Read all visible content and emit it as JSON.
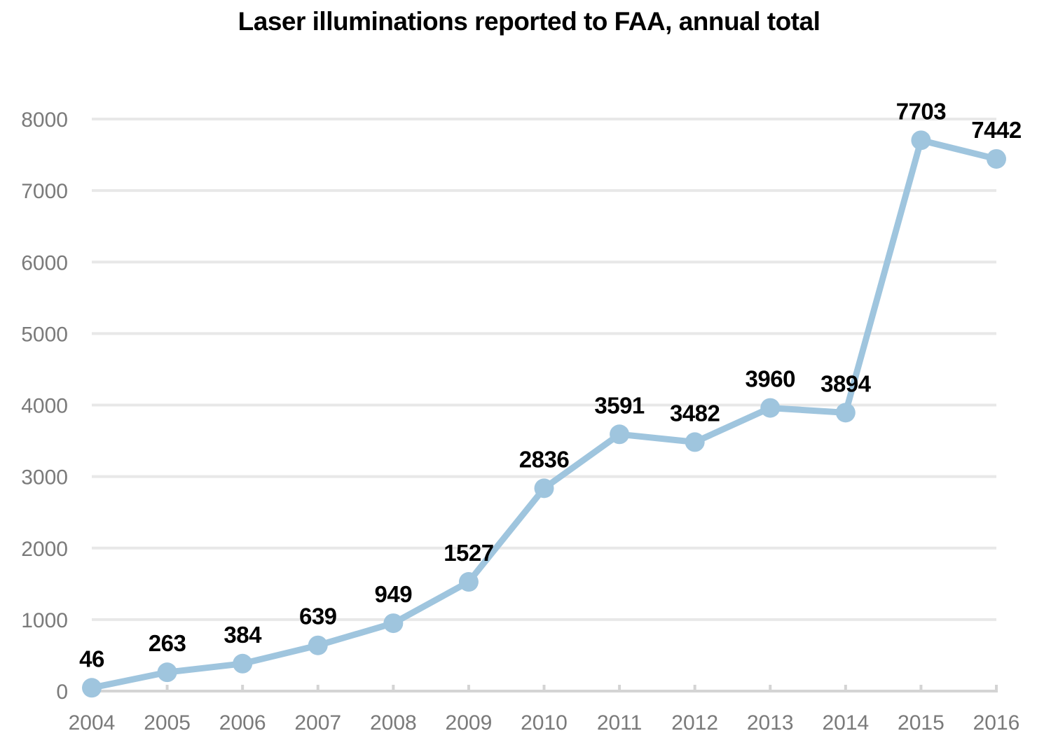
{
  "chart_data": {
    "type": "line",
    "title": "Laser illuminations reported to FAA, annual total",
    "xlabel": "",
    "ylabel": "",
    "categories": [
      "2004",
      "2005",
      "2006",
      "2007",
      "2008",
      "2009",
      "2010",
      "2011",
      "2012",
      "2013",
      "2014",
      "2015",
      "2016"
    ],
    "series": [
      {
        "name": "Laser illuminations",
        "values": [
          46,
          263,
          384,
          639,
          949,
          1527,
          2836,
          3591,
          3482,
          3960,
          3894,
          7703,
          7442
        ]
      }
    ],
    "data_labels": [
      "46",
      "263",
      "384",
      "639",
      "949",
      "1527",
      "2836",
      "3591",
      "3482",
      "3960",
      "3894",
      "7703",
      "7442"
    ],
    "ylim": [
      0,
      8000
    ],
    "yticks": [
      "0",
      "1000",
      "2000",
      "3000",
      "4000",
      "5000",
      "6000",
      "7000",
      "8000"
    ],
    "grid": true,
    "legend": "none",
    "colors": {
      "line": "#9fc5de",
      "grid": "#e8e8e8",
      "axis": "#d4d4d4",
      "tick_text": "#7a7a7a",
      "label_text": "#000000"
    }
  }
}
